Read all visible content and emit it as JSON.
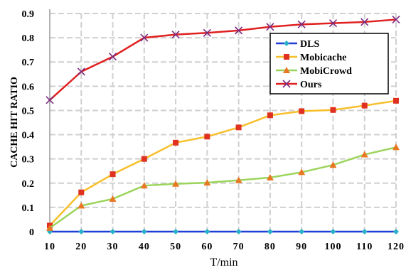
{
  "chart_data": {
    "type": "line",
    "xlabel": "T/min",
    "ylabel": "CACHE HIT RATIO",
    "x": [
      10,
      20,
      30,
      40,
      50,
      60,
      70,
      80,
      90,
      100,
      110,
      120
    ],
    "xlim": [
      10,
      120
    ],
    "ylim": [
      0,
      0.9
    ],
    "yticks": [
      "0",
      "0.1",
      "0.2",
      "0.3",
      "0.4",
      "0.5",
      "0.6",
      "0.7",
      "0.8",
      "0.9"
    ],
    "grid": true,
    "legend_position": "top-right",
    "series": [
      {
        "name": "DLS",
        "color": "#1f3fd6",
        "marker_color": "#2ab0c8",
        "marker": "diamond",
        "values": [
          0,
          0,
          0,
          0,
          0,
          0,
          0,
          0,
          0,
          0,
          0,
          0
        ]
      },
      {
        "name": "Mobicache",
        "color": "#f7bf2a",
        "marker_color": "#e03020",
        "marker": "square",
        "values": [
          0.025,
          0.162,
          0.237,
          0.3,
          0.367,
          0.392,
          0.43,
          0.48,
          0.497,
          0.502,
          0.52,
          0.54
        ]
      },
      {
        "name": "MobiCrowd",
        "color": "#9bd45a",
        "marker_color": "#e87722",
        "marker": "triangle",
        "values": [
          0.015,
          0.107,
          0.135,
          0.19,
          0.197,
          0.202,
          0.212,
          0.223,
          0.245,
          0.275,
          0.318,
          0.348
        ]
      },
      {
        "name": "Ours",
        "color": "#e02020",
        "marker_color": "#7a2a80",
        "marker": "x",
        "values": [
          0.543,
          0.66,
          0.722,
          0.8,
          0.813,
          0.82,
          0.83,
          0.845,
          0.855,
          0.86,
          0.865,
          0.875
        ]
      }
    ]
  }
}
